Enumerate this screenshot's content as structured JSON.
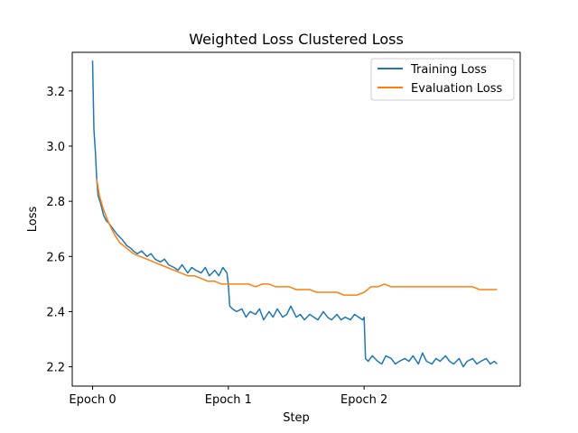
{
  "chart_data": {
    "type": "line",
    "title": "Weighted Loss Clustered Loss",
    "xlabel": "Step",
    "ylabel": "Loss",
    "xlim": [
      -0.15,
      3.15
    ],
    "ylim": [
      2.13,
      3.34
    ],
    "x_ticks": [
      {
        "value": 0,
        "label": "Epoch 0"
      },
      {
        "value": 1,
        "label": "Epoch 1"
      },
      {
        "value": 2,
        "label": "Epoch 2"
      }
    ],
    "y_ticks": [
      {
        "value": 2.2,
        "label": "2.2"
      },
      {
        "value": 2.4,
        "label": "2.4"
      },
      {
        "value": 2.6,
        "label": "2.6"
      },
      {
        "value": 2.8,
        "label": "2.8"
      },
      {
        "value": 3.0,
        "label": "3.0"
      },
      {
        "value": 3.2,
        "label": "3.2"
      }
    ],
    "legend_position": "top-right",
    "grid": false,
    "series": [
      {
        "name": "Training Loss",
        "color": "#1f77b4",
        "x": [
          0.0,
          0.01,
          0.02,
          0.03,
          0.04,
          0.06,
          0.08,
          0.1,
          0.12,
          0.15,
          0.18,
          0.2,
          0.22,
          0.25,
          0.28,
          0.3,
          0.33,
          0.36,
          0.4,
          0.43,
          0.46,
          0.5,
          0.53,
          0.56,
          0.6,
          0.63,
          0.66,
          0.7,
          0.73,
          0.76,
          0.8,
          0.83,
          0.86,
          0.9,
          0.93,
          0.96,
          0.99,
          1.0,
          1.01,
          1.03,
          1.06,
          1.1,
          1.13,
          1.16,
          1.2,
          1.23,
          1.26,
          1.3,
          1.33,
          1.36,
          1.4,
          1.43,
          1.46,
          1.5,
          1.53,
          1.56,
          1.6,
          1.63,
          1.66,
          1.7,
          1.73,
          1.76,
          1.8,
          1.83,
          1.86,
          1.9,
          1.93,
          1.96,
          1.99,
          2.0,
          2.01,
          2.03,
          2.06,
          2.1,
          2.13,
          2.16,
          2.2,
          2.23,
          2.26,
          2.3,
          2.33,
          2.36,
          2.4,
          2.43,
          2.46,
          2.5,
          2.53,
          2.56,
          2.6,
          2.63,
          2.66,
          2.7,
          2.73,
          2.76,
          2.8,
          2.83,
          2.86,
          2.9,
          2.93,
          2.96,
          2.98
        ],
        "y": [
          3.31,
          3.06,
          2.98,
          2.88,
          2.82,
          2.79,
          2.75,
          2.73,
          2.72,
          2.7,
          2.68,
          2.67,
          2.66,
          2.64,
          2.63,
          2.62,
          2.61,
          2.62,
          2.6,
          2.61,
          2.59,
          2.58,
          2.59,
          2.57,
          2.56,
          2.55,
          2.57,
          2.54,
          2.56,
          2.55,
          2.54,
          2.56,
          2.53,
          2.55,
          2.53,
          2.56,
          2.54,
          2.5,
          2.42,
          2.41,
          2.4,
          2.41,
          2.38,
          2.4,
          2.39,
          2.41,
          2.37,
          2.4,
          2.38,
          2.41,
          2.38,
          2.39,
          2.42,
          2.38,
          2.39,
          2.37,
          2.39,
          2.38,
          2.37,
          2.4,
          2.38,
          2.37,
          2.39,
          2.37,
          2.38,
          2.37,
          2.39,
          2.38,
          2.37,
          2.38,
          2.23,
          2.22,
          2.24,
          2.22,
          2.21,
          2.24,
          2.23,
          2.21,
          2.22,
          2.23,
          2.22,
          2.24,
          2.21,
          2.25,
          2.22,
          2.21,
          2.23,
          2.22,
          2.24,
          2.22,
          2.21,
          2.23,
          2.2,
          2.22,
          2.23,
          2.21,
          2.22,
          2.23,
          2.21,
          2.22,
          2.21
        ]
      },
      {
        "name": "Evaluation Loss",
        "color": "#ff7f0e",
        "x": [
          0.03,
          0.05,
          0.08,
          0.12,
          0.16,
          0.2,
          0.25,
          0.3,
          0.35,
          0.4,
          0.45,
          0.5,
          0.55,
          0.6,
          0.65,
          0.7,
          0.75,
          0.8,
          0.85,
          0.9,
          0.95,
          1.0,
          1.05,
          1.1,
          1.15,
          1.2,
          1.25,
          1.3,
          1.35,
          1.4,
          1.45,
          1.5,
          1.55,
          1.6,
          1.65,
          1.7,
          1.75,
          1.8,
          1.85,
          1.9,
          1.95,
          2.0,
          2.05,
          2.1,
          2.15,
          2.2,
          2.25,
          2.3,
          2.35,
          2.4,
          2.45,
          2.5,
          2.55,
          2.6,
          2.65,
          2.7,
          2.75,
          2.8,
          2.85,
          2.9,
          2.95,
          2.98
        ],
        "y": [
          2.88,
          2.82,
          2.77,
          2.72,
          2.68,
          2.65,
          2.63,
          2.61,
          2.6,
          2.59,
          2.58,
          2.57,
          2.56,
          2.55,
          2.54,
          2.53,
          2.53,
          2.52,
          2.51,
          2.51,
          2.5,
          2.5,
          2.5,
          2.5,
          2.5,
          2.49,
          2.5,
          2.5,
          2.49,
          2.49,
          2.49,
          2.48,
          2.48,
          2.48,
          2.47,
          2.47,
          2.47,
          2.47,
          2.46,
          2.46,
          2.46,
          2.47,
          2.49,
          2.49,
          2.5,
          2.49,
          2.49,
          2.49,
          2.49,
          2.49,
          2.49,
          2.49,
          2.49,
          2.49,
          2.49,
          2.49,
          2.49,
          2.49,
          2.48,
          2.48,
          2.48,
          2.48
        ]
      }
    ]
  }
}
